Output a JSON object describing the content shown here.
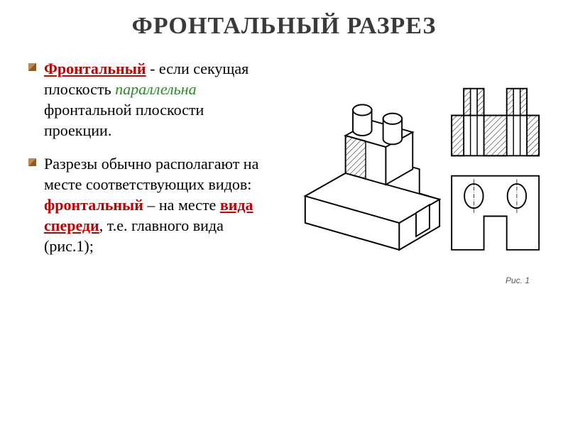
{
  "title": "ФРОНТАЛЬНЫЙ РАЗРЕЗ",
  "title_fontsize": 34,
  "title_color": "#3a3a3a",
  "bullet_fontsize": 22,
  "bullet_line_height": 1.32,
  "bullet_text_color": "#000000",
  "bullet_marker_color": "#c08a4a",
  "bullet_marker_shadow": "#8a5a28",
  "red_color": "#c00000",
  "green_color": "#2a8a2a",
  "bullets": [
    {
      "parts": [
        {
          "text": "Фронтальный",
          "style": "red-underline-bold"
        },
        {
          "text": " - если секущая плоскость ",
          "style": "plain"
        },
        {
          "text": "параллельна",
          "style": "green-italic"
        },
        {
          "text": " фронтальной плоскости проекции.",
          "style": "plain"
        }
      ]
    },
    {
      "parts": [
        {
          "text": "Разрезы обычно располагают на месте соответствующих видов: ",
          "style": "plain"
        },
        {
          "text": "фронтальный",
          "style": "red-bold"
        },
        {
          "text": " – на месте ",
          "style": "plain"
        },
        {
          "text": "вида спереди",
          "style": "red-underline"
        },
        {
          "text": ", т.е. главного вида (рис.1);",
          "style": "plain"
        }
      ]
    }
  ],
  "figure": {
    "caption": "Рис. 1",
    "caption_fontsize": 12,
    "caption_color": "#5a5a5a",
    "stroke": "#000000",
    "stroke_width": 2,
    "hatch_spacing": 6,
    "background": "#ffffff"
  }
}
